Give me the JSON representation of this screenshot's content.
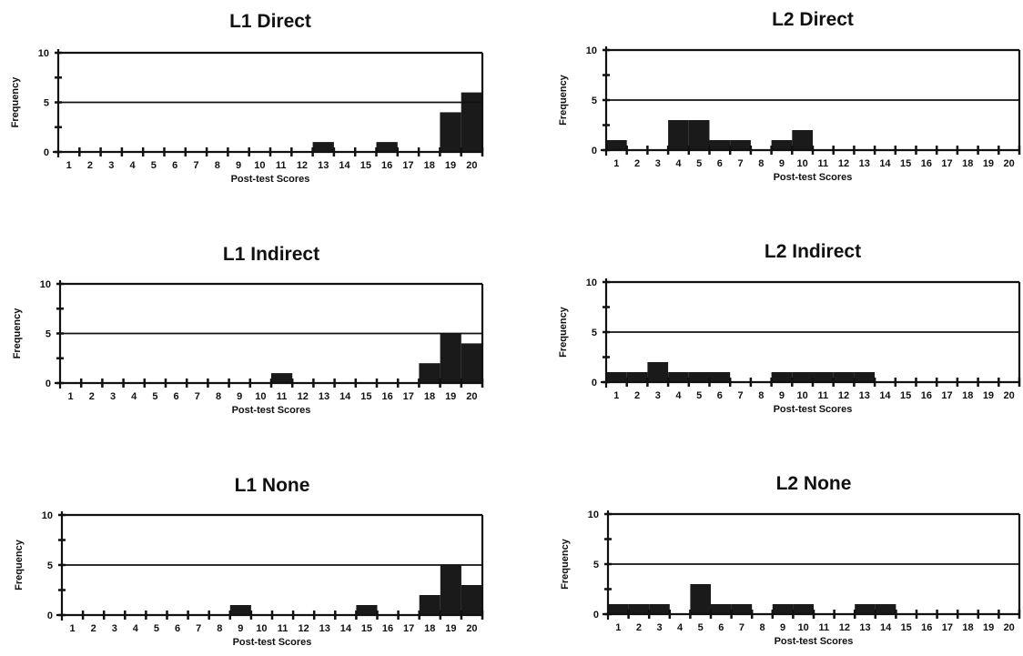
{
  "chart_data": [
    {
      "type": "bar",
      "title": "L1 Direct",
      "xlabel": "Post-test Scores",
      "ylabel": "Frequency",
      "ylim": [
        0,
        10
      ],
      "yticks": [
        "0",
        "5",
        "10"
      ],
      "reference_line": 5,
      "categories": [
        "1",
        "2",
        "3",
        "4",
        "5",
        "6",
        "7",
        "8",
        "9",
        "10",
        "11",
        "12",
        "13",
        "14",
        "15",
        "16",
        "17",
        "18",
        "19",
        "20"
      ],
      "values": [
        0,
        0,
        0,
        0,
        0,
        0,
        0,
        0,
        0,
        0,
        0,
        0,
        1,
        0,
        0,
        1,
        0,
        0,
        4,
        6
      ]
    },
    {
      "type": "bar",
      "title": "L2 Direct",
      "xlabel": "Post-test Scores",
      "ylabel": "Frequency",
      "ylim": [
        0,
        10
      ],
      "yticks": [
        "0",
        "5",
        "10"
      ],
      "reference_line": 5,
      "categories": [
        "1",
        "2",
        "3",
        "4",
        "5",
        "6",
        "7",
        "8",
        "9",
        "10",
        "11",
        "12",
        "13",
        "14",
        "15",
        "16",
        "17",
        "18",
        "19",
        "20"
      ],
      "values": [
        1,
        0,
        0,
        3,
        3,
        1,
        1,
        0,
        1,
        2,
        0,
        0,
        0,
        0,
        0,
        0,
        0,
        0,
        0,
        0
      ]
    },
    {
      "type": "bar",
      "title": "L1 Indirect",
      "xlabel": "Post-test Scores",
      "ylabel": "Frequency",
      "ylim": [
        0,
        10
      ],
      "yticks": [
        "0",
        "5",
        "10"
      ],
      "reference_line": 5,
      "categories": [
        "1",
        "2",
        "3",
        "4",
        "5",
        "6",
        "7",
        "8",
        "9",
        "10",
        "11",
        "12",
        "13",
        "14",
        "15",
        "16",
        "17",
        "18",
        "19",
        "20"
      ],
      "values": [
        0,
        0,
        0,
        0,
        0,
        0,
        0,
        0,
        0,
        0,
        1,
        0,
        0,
        0,
        0,
        0,
        0,
        2,
        5,
        4
      ]
    },
    {
      "type": "bar",
      "title": "L2 Indirect",
      "xlabel": "Post-test Scores",
      "ylabel": "Frequency",
      "ylim": [
        0,
        10
      ],
      "yticks": [
        "0",
        "5",
        "10"
      ],
      "reference_line": 5,
      "categories": [
        "1",
        "2",
        "3",
        "4",
        "5",
        "6",
        "7",
        "8",
        "9",
        "10",
        "11",
        "12",
        "13",
        "14",
        "15",
        "16",
        "17",
        "18",
        "19",
        "20"
      ],
      "values": [
        1,
        1,
        2,
        1,
        1,
        1,
        0,
        0,
        1,
        1,
        1,
        1,
        1,
        0,
        0,
        0,
        0,
        0,
        0,
        0
      ]
    },
    {
      "type": "bar",
      "title": "L1 None",
      "xlabel": "Post-test Scores",
      "ylabel": "Frequency",
      "ylim": [
        0,
        10
      ],
      "yticks": [
        "0",
        "5",
        "10"
      ],
      "reference_line": 5,
      "categories": [
        "1",
        "2",
        "3",
        "4",
        "5",
        "6",
        "7",
        "8",
        "9",
        "10",
        "11",
        "12",
        "13",
        "14",
        "15",
        "16",
        "17",
        "18",
        "19",
        "20"
      ],
      "values": [
        0,
        0,
        0,
        0,
        0,
        0,
        0,
        0,
        1,
        0,
        0,
        0,
        0,
        0,
        1,
        0,
        0,
        2,
        5,
        3
      ]
    },
    {
      "type": "bar",
      "title": "L2 None",
      "xlabel": "Post-test Scores",
      "ylabel": "Frequency",
      "ylim": [
        0,
        10
      ],
      "yticks": [
        "0",
        "5",
        "10"
      ],
      "reference_line": 5,
      "categories": [
        "1",
        "2",
        "3",
        "4",
        "5",
        "6",
        "7",
        "8",
        "9",
        "10",
        "11",
        "12",
        "13",
        "14",
        "15",
        "16",
        "17",
        "18",
        "19",
        "20"
      ],
      "values": [
        1,
        1,
        1,
        0,
        3,
        1,
        1,
        0,
        1,
        1,
        0,
        0,
        1,
        1,
        0,
        0,
        0,
        0,
        0,
        0
      ]
    }
  ]
}
